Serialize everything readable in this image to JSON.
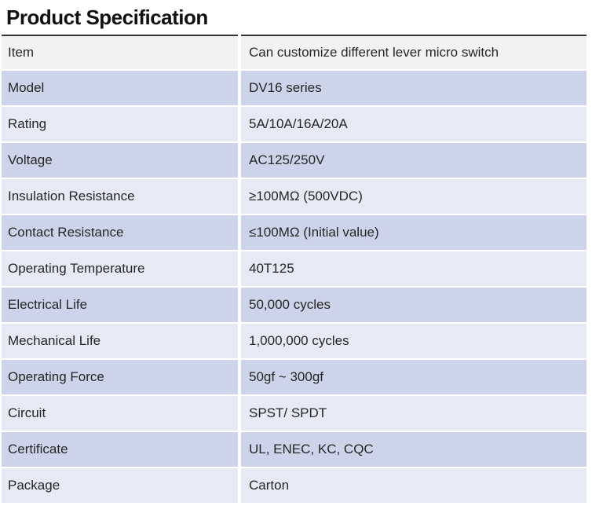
{
  "page_title": "Product Specification",
  "colors": {
    "border_top": "#333333",
    "row_first_bg": "#f2f2f2",
    "row_medium_bg": "#cdd3e8",
    "row_light_bg": "#e7e9f5",
    "text": "#262626"
  },
  "table": {
    "rows": [
      {
        "label": "Item",
        "value": "Can customize different lever micro switch"
      },
      {
        "label": "Model",
        "value": "DV16 series"
      },
      {
        "label": "Rating",
        "value": "5A/10A/16A/20A"
      },
      {
        "label": "Voltage",
        "value": "AC125/250V"
      },
      {
        "label": "Insulation Resistance",
        "value": "≥100MΩ (500VDC)"
      },
      {
        "label": "Contact Resistance",
        "value": "≤100MΩ (Initial value)"
      },
      {
        "label": "Operating Temperature",
        "value": "40T125"
      },
      {
        "label": "Electrical Life",
        "value": "50,000 cycles"
      },
      {
        "label": "Mechanical Life",
        "value": "1,000,000 cycles"
      },
      {
        "label": "Operating Force",
        "value": "50gf ~ 300gf"
      },
      {
        "label": "Circuit",
        "value": "SPST/ SPDT"
      },
      {
        "label": "Certificate",
        "value": "UL, ENEC, KC, CQC"
      },
      {
        "label": "Package",
        "value": "Carton"
      }
    ]
  }
}
